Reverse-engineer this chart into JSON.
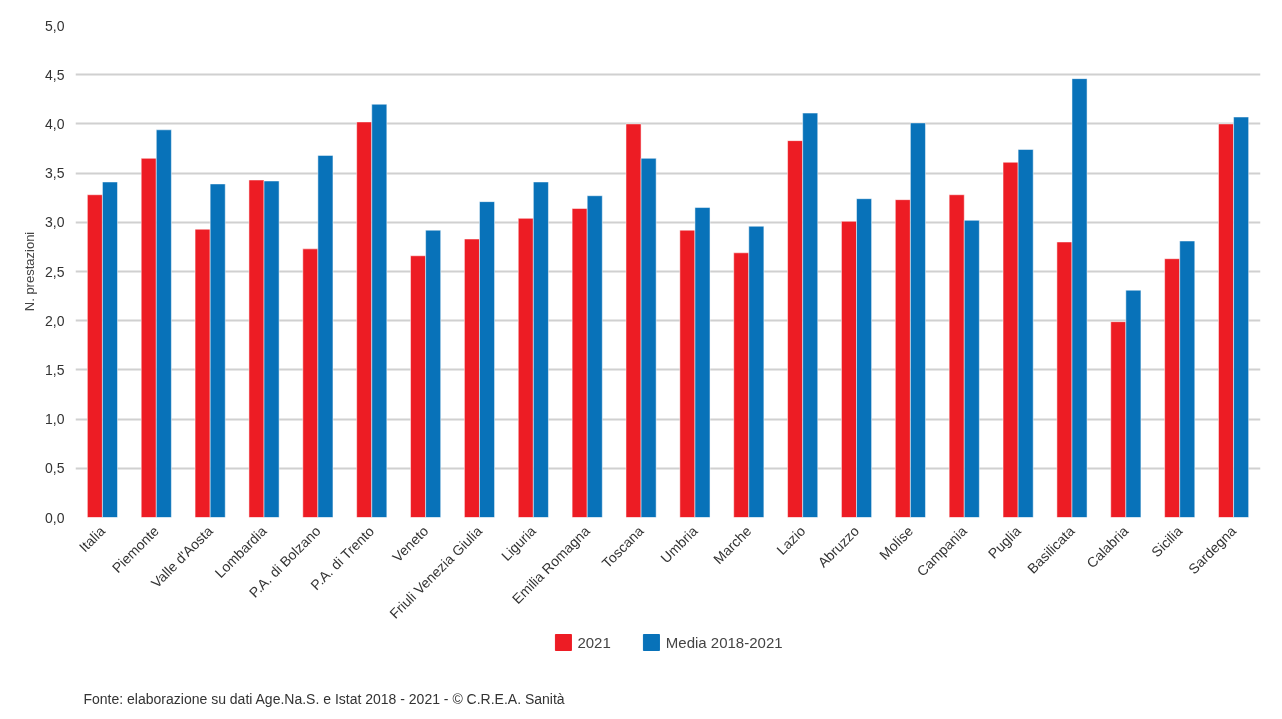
{
  "chart_data": {
    "type": "bar",
    "ylabel": "N. prestazioni",
    "categories": [
      "Italia",
      "Piemonte",
      "Valle d'Aosta",
      "Lombardia",
      "P.A. di Bolzano",
      "P.A. di Trento",
      "Veneto",
      "Friuli Venezia Giulia",
      "Liguria",
      "Emilia Romagna",
      "Toscana",
      "Umbria",
      "Marche",
      "Lazio",
      "Abruzzo",
      "Molise",
      "Campania",
      "Puglia",
      "Basilicata",
      "Calabria",
      "Sicilia",
      "Sardegna"
    ],
    "series": [
      {
        "name": "2021",
        "color": "#ed1c24",
        "values": [
          3.28,
          3.65,
          2.93,
          3.43,
          2.73,
          4.02,
          2.66,
          2.83,
          3.04,
          3.14,
          4.0,
          2.92,
          2.69,
          3.83,
          3.01,
          3.23,
          3.28,
          3.61,
          2.8,
          1.99,
          2.63,
          4.0
        ]
      },
      {
        "name": "Media 2018-2021",
        "color": "#0872b9",
        "values": [
          3.41,
          3.94,
          3.39,
          3.42,
          3.68,
          4.2,
          2.92,
          3.21,
          3.41,
          3.27,
          3.65,
          3.15,
          2.96,
          4.11,
          3.24,
          4.01,
          3.02,
          3.74,
          4.46,
          2.31,
          2.81,
          4.07
        ]
      }
    ],
    "ylim": [
      0,
      5
    ],
    "yticks": [
      {
        "value": 0,
        "label": "0,0"
      },
      {
        "value": 0.5,
        "label": "0,5"
      },
      {
        "value": 1,
        "label": "1,0"
      },
      {
        "value": 1.5,
        "label": "1,5"
      },
      {
        "value": 2,
        "label": "2,0"
      },
      {
        "value": 2.5,
        "label": "2,5"
      },
      {
        "value": 3,
        "label": "3,0"
      },
      {
        "value": 3.5,
        "label": "3,5"
      },
      {
        "value": 4,
        "label": "4,0"
      },
      {
        "value": 4.5,
        "label": "4,5"
      },
      {
        "value": 5,
        "label": "5,0"
      }
    ],
    "grid": "y",
    "legend": "bottom",
    "annotations": [
      "Fonte: elaborazione su dati Age.Na.S. e Istat 2018 - 2021 - © C.R.E.A. Sanità"
    ]
  }
}
